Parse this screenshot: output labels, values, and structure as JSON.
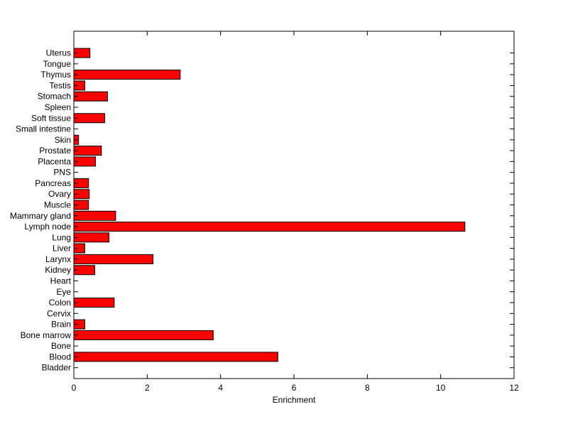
{
  "chart_data": {
    "type": "bar",
    "orientation": "horizontal",
    "title": "",
    "xlabel": "Enrichment",
    "ylabel": "",
    "xlim": [
      0,
      12
    ],
    "xticks": [
      0,
      2,
      4,
      6,
      8,
      10,
      12
    ],
    "grid": false,
    "bar_color": "#ff0000",
    "categories": [
      "Bladder",
      "Blood",
      "Bone",
      "Bone marrow",
      "Brain",
      "Cervix",
      "Colon",
      "Eye",
      "Heart",
      "Kidney",
      "Larynx",
      "Liver",
      "Lung",
      "Lymph node",
      "Mammary gland",
      "Muscle",
      "Ovary",
      "Pancreas",
      "PNS",
      "Placenta",
      "Prostate",
      "Skin",
      "Small intestine",
      "Soft tissue",
      "Spleen",
      "Stomach",
      "Testis",
      "Thymus",
      "Tongue",
      "Uterus"
    ],
    "values": [
      0,
      5.56,
      0,
      3.8,
      0.3,
      0,
      1.1,
      0,
      0,
      0.57,
      2.16,
      0.3,
      0.96,
      10.66,
      1.14,
      0.4,
      0.42,
      0.4,
      0,
      0.59,
      0.75,
      0.13,
      0,
      0.84,
      0,
      0.92,
      0.3,
      2.9,
      0,
      0.44
    ]
  }
}
